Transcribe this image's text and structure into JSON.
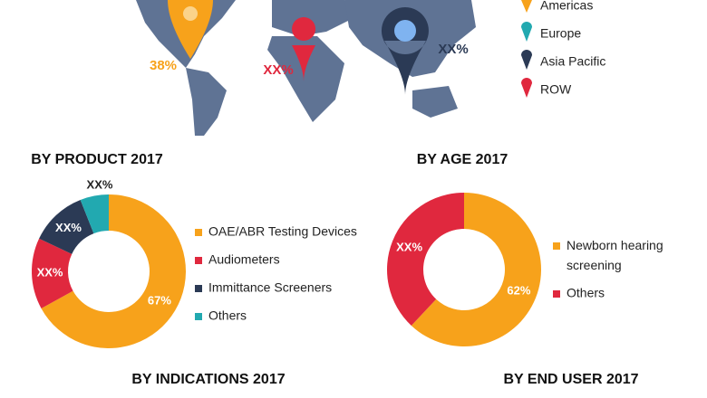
{
  "map": {
    "annotations": [
      "38%",
      "XX%",
      "XX%"
    ],
    "legend": [
      "Americas",
      "Europe",
      "Asia Pacific",
      "ROW"
    ]
  },
  "chart_data": [
    {
      "type": "pie",
      "donut": true,
      "title": "BY PRODUCT 2017",
      "categories": [
        "OAE/ABR Testing Devices",
        "Audiometers",
        "Immittance Screeners",
        "Others"
      ],
      "values": [
        67,
        15,
        12,
        6
      ],
      "value_labels": [
        "67%",
        "XX%",
        "XX%",
        "XX%"
      ],
      "colors": [
        "#f7a21b",
        "#e0283e",
        "#2b3a55",
        "#22a9b0"
      ]
    },
    {
      "type": "pie",
      "donut": true,
      "title": "BY AGE 2017",
      "categories": [
        "Newborn hearing screening",
        "Others"
      ],
      "values": [
        62,
        38
      ],
      "value_labels": [
        "62%",
        "XX%"
      ],
      "colors": [
        "#f7a21b",
        "#e0283e"
      ]
    }
  ],
  "sections": [
    "BY INDICATIONS 2017",
    "BY END USER 2017"
  ]
}
